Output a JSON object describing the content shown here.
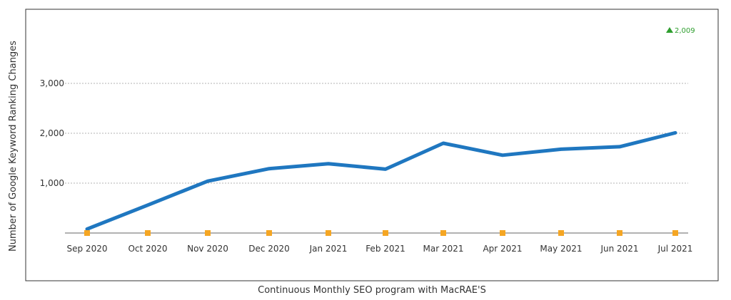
{
  "chart_data": {
    "type": "line",
    "title": "",
    "xlabel": "Continuous Monthly SEO program with MacRAE'S",
    "ylabel": "Number of Google Keyword Ranking Changes",
    "categories": [
      "Sep 2020",
      "Oct 2020",
      "Nov 2020",
      "Dec 2020",
      "Jan 2021",
      "Feb 2021",
      "Mar 2021",
      "Apr 2021",
      "May 2021",
      "Jun 2021",
      "Jul 2021"
    ],
    "y_ticks": [
      1000,
      2000,
      3000
    ],
    "y_tick_labels": [
      "1,000",
      "2,000",
      "3,000"
    ],
    "ylim": [
      0,
      4000
    ],
    "grid": true,
    "series": [
      {
        "values": [
          80,
          560,
          1040,
          1290,
          1390,
          1280,
          1800,
          1560,
          1680,
          1730,
          2009
        ],
        "color": "#1f77c0"
      },
      {
        "marker": "square",
        "values": [
          0,
          0,
          0,
          0,
          0,
          0,
          0,
          0,
          0,
          0,
          0
        ],
        "color": "#f5a623"
      }
    ],
    "annotation": {
      "text": "2,009",
      "icon": "triangle-up-icon",
      "color": "#2e9e2e"
    }
  }
}
